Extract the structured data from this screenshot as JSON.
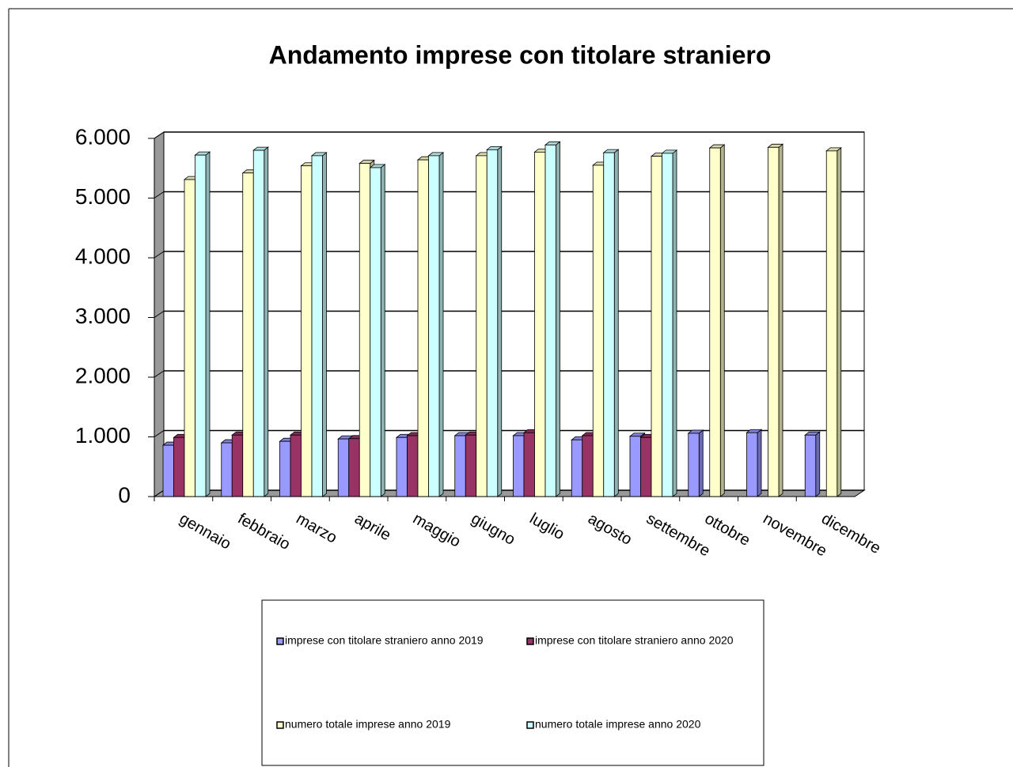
{
  "chart_data": {
    "type": "bar3d",
    "title": "Andamento imprese con titolare straniero",
    "categories": [
      "gennaio",
      "febbraio",
      "marzo",
      "aprile",
      "maggio",
      "giugno",
      "luglio",
      "agosto",
      "settembre",
      "ottobre",
      "novembre",
      "dicembre"
    ],
    "series": [
      {
        "name": "imprese con titolare straniero anno 2019",
        "color": "#9999ff",
        "values": [
          860,
          900,
          925,
          965,
          990,
          1020,
          1020,
          950,
          1010,
          1060,
          1070,
          1030
        ]
      },
      {
        "name": "imprese con titolare straniero anno 2020",
        "color": "#993366",
        "values": [
          990,
          1030,
          1030,
          970,
          1020,
          1030,
          1070,
          1020,
          990,
          null,
          null,
          null
        ]
      },
      {
        "name": "numero totale imprese anno 2019",
        "color": "#ffffcc",
        "values": [
          5310,
          5420,
          5540,
          5580,
          5640,
          5710,
          5770,
          5550,
          5700,
          5840,
          5850,
          5790
        ]
      },
      {
        "name": "numero totale imprese anno 2020",
        "color": "#ccffff",
        "values": [
          5720,
          5800,
          5710,
          5510,
          5710,
          5810,
          5890,
          5760,
          5750,
          null,
          null,
          null
        ]
      }
    ],
    "ylim": [
      0,
      6000
    ],
    "yticks": [
      0,
      {
        "value": 1000,
        "label": "1.000"
      },
      {
        "value": 2000,
        "label": "2.000"
      },
      {
        "value": 3000,
        "label": "3.000"
      },
      {
        "value": 4000,
        "label": "4.000"
      },
      {
        "value": 5000,
        "label": "5.000"
      },
      {
        "value": 6000,
        "label": "6.000"
      }
    ],
    "grid": true
  }
}
